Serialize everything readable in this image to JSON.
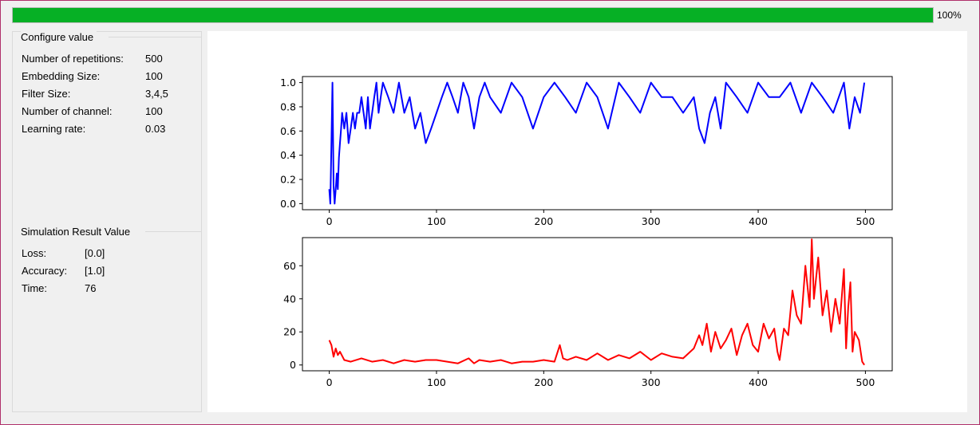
{
  "progress": {
    "value": 1.0,
    "label": "100%",
    "color": "#06b025"
  },
  "configure": {
    "title": "Configure value",
    "rows": [
      {
        "label": "Number of repetitions:",
        "value": "500"
      },
      {
        "label": "Embedding Size:",
        "value": "100"
      },
      {
        "label": "Filter Size:",
        "value": "3,4,5"
      },
      {
        "label": "Number of channel:",
        "value": "100"
      },
      {
        "label": "Learning rate:",
        "value": "0.03"
      }
    ]
  },
  "result": {
    "title": "Simulation Result Value",
    "rows": [
      {
        "label": "Loss:",
        "value": "[0.0]"
      },
      {
        "label": "Accuracy:",
        "value": "[1.0]"
      },
      {
        "label": "Time:",
        "value": "76"
      }
    ]
  },
  "chart_data": [
    {
      "type": "line",
      "title": "",
      "xlabel": "",
      "ylabel": "",
      "xlim": [
        -25,
        525
      ],
      "ylim": [
        -0.05,
        1.05
      ],
      "xticks": [
        "0",
        "100",
        "200",
        "300",
        "400",
        "500"
      ],
      "yticks": [
        "0.0",
        "0.2",
        "0.4",
        "0.6",
        "0.8",
        "1.0"
      ],
      "grid": false,
      "series": [
        {
          "color": "#0000ff",
          "x": [
            0,
            1,
            2,
            3,
            4,
            5,
            6,
            7,
            8,
            9,
            10,
            11,
            12,
            14,
            16,
            18,
            20,
            22,
            24,
            26,
            28,
            30,
            32,
            34,
            36,
            38,
            40,
            42,
            44,
            46,
            48,
            50,
            55,
            60,
            65,
            70,
            75,
            80,
            85,
            90,
            95,
            100,
            105,
            110,
            115,
            120,
            125,
            130,
            135,
            140,
            145,
            150,
            160,
            170,
            180,
            190,
            200,
            210,
            220,
            230,
            240,
            250,
            260,
            270,
            280,
            290,
            300,
            310,
            320,
            330,
            340,
            345,
            350,
            355,
            360,
            365,
            370,
            380,
            390,
            400,
            410,
            420,
            430,
            440,
            450,
            460,
            470,
            480,
            485,
            490,
            495,
            499
          ],
          "values": [
            0.12,
            0.0,
            0.5,
            1.0,
            0.15,
            0.0,
            0.12,
            0.25,
            0.12,
            0.38,
            0.5,
            0.62,
            0.75,
            0.62,
            0.75,
            0.5,
            0.62,
            0.75,
            0.62,
            0.75,
            0.75,
            0.88,
            0.75,
            0.62,
            0.88,
            0.62,
            0.75,
            0.88,
            1.0,
            0.75,
            0.88,
            1.0,
            0.88,
            0.75,
            1.0,
            0.75,
            0.88,
            0.62,
            0.75,
            0.5,
            0.62,
            0.75,
            0.88,
            1.0,
            0.88,
            0.75,
            1.0,
            0.88,
            0.62,
            0.88,
            1.0,
            0.88,
            0.75,
            1.0,
            0.88,
            0.62,
            0.88,
            1.0,
            0.88,
            0.75,
            1.0,
            0.88,
            0.62,
            1.0,
            0.88,
            0.75,
            1.0,
            0.88,
            0.88,
            0.75,
            0.88,
            0.62,
            0.5,
            0.75,
            0.88,
            0.62,
            1.0,
            0.88,
            0.75,
            1.0,
            0.88,
            0.88,
            1.0,
            0.75,
            1.0,
            0.88,
            0.75,
            1.0,
            0.62,
            0.88,
            0.75,
            1.0
          ]
        }
      ]
    },
    {
      "type": "line",
      "title": "",
      "xlabel": "",
      "ylabel": "",
      "xlim": [
        -25,
        525
      ],
      "ylim": [
        -3.5,
        77
      ],
      "xticks": [
        "0",
        "100",
        "200",
        "300",
        "400",
        "500"
      ],
      "yticks": [
        "0",
        "20",
        "40",
        "60"
      ],
      "grid": false,
      "series": [
        {
          "color": "#ff0000",
          "x": [
            0,
            2,
            4,
            6,
            8,
            10,
            14,
            20,
            30,
            40,
            50,
            60,
            70,
            80,
            90,
            100,
            110,
            120,
            130,
            135,
            140,
            150,
            160,
            170,
            180,
            190,
            200,
            210,
            215,
            218,
            222,
            230,
            240,
            250,
            260,
            270,
            280,
            290,
            300,
            310,
            320,
            330,
            340,
            345,
            348,
            352,
            356,
            360,
            365,
            370,
            375,
            380,
            385,
            390,
            395,
            400,
            405,
            410,
            415,
            418,
            420,
            424,
            428,
            432,
            436,
            440,
            444,
            448,
            450,
            452,
            456,
            460,
            464,
            468,
            472,
            476,
            480,
            482,
            484,
            486,
            488,
            490,
            494,
            497,
            499
          ],
          "values": [
            15,
            12,
            5,
            10,
            6,
            8,
            3,
            2,
            4,
            2,
            3,
            1,
            3,
            2,
            3,
            3,
            2,
            1,
            4,
            1,
            3,
            2,
            3,
            1,
            2,
            2,
            3,
            2,
            12,
            4,
            3,
            5,
            3,
            7,
            3,
            6,
            4,
            8,
            3,
            7,
            5,
            4,
            10,
            18,
            12,
            25,
            8,
            20,
            10,
            15,
            22,
            6,
            18,
            25,
            12,
            8,
            25,
            16,
            22,
            8,
            3,
            22,
            18,
            45,
            30,
            25,
            60,
            35,
            76,
            40,
            65,
            30,
            45,
            20,
            40,
            25,
            58,
            10,
            35,
            50,
            8,
            20,
            15,
            2,
            0
          ]
        }
      ]
    }
  ]
}
